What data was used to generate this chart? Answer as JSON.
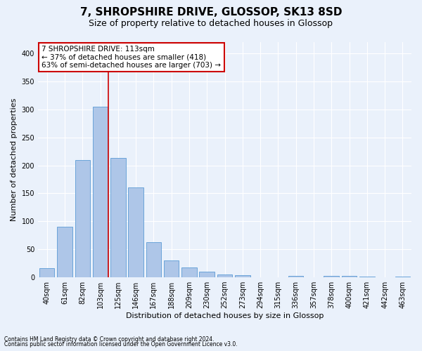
{
  "title": "7, SHROPSHIRE DRIVE, GLOSSOP, SK13 8SD",
  "subtitle": "Size of property relative to detached houses in Glossop",
  "xlabel": "Distribution of detached houses by size in Glossop",
  "ylabel": "Number of detached properties",
  "footnote1": "Contains HM Land Registry data © Crown copyright and database right 2024.",
  "footnote2": "Contains public sector information licensed under the Open Government Licence v3.0.",
  "bar_labels": [
    "40sqm",
    "61sqm",
    "82sqm",
    "103sqm",
    "125sqm",
    "146sqm",
    "167sqm",
    "188sqm",
    "209sqm",
    "230sqm",
    "252sqm",
    "273sqm",
    "294sqm",
    "315sqm",
    "336sqm",
    "357sqm",
    "378sqm",
    "400sqm",
    "421sqm",
    "442sqm",
    "463sqm"
  ],
  "bar_values": [
    16,
    90,
    210,
    305,
    213,
    160,
    63,
    30,
    18,
    10,
    5,
    4,
    0,
    0,
    2,
    0,
    3,
    2,
    1,
    0,
    1
  ],
  "bar_color": "#aec6e8",
  "bar_edge_color": "#5b9bd5",
  "background_color": "#eaf1fb",
  "grid_color": "#ffffff",
  "annotation_line1": "7 SHROPSHIRE DRIVE: 113sqm",
  "annotation_line2": "← 37% of detached houses are smaller (418)",
  "annotation_line3": "63% of semi-detached houses are larger (703) →",
  "annotation_box_color": "#ffffff",
  "annotation_box_edge": "#cc0000",
  "vline_color": "#cc0000",
  "ylim": [
    0,
    420
  ],
  "yticks": [
    0,
    50,
    100,
    150,
    200,
    250,
    300,
    350,
    400
  ],
  "title_fontsize": 11,
  "subtitle_fontsize": 9,
  "axis_label_fontsize": 8,
  "tick_fontsize": 7,
  "annotation_fontsize": 7.5,
  "footnote_fontsize": 5.5
}
